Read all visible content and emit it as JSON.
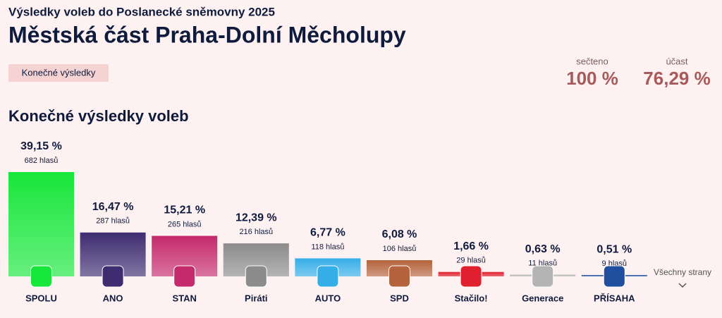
{
  "header": {
    "supertitle": "Výsledky voleb do Poslanecké sněmovny 2025",
    "title": "Městská část Praha-Dolní Měcholupy",
    "badge": "Konečné výsledky"
  },
  "stats": [
    {
      "label": "sečteno",
      "value": "100 %"
    },
    {
      "label": "účast",
      "value": "76,29 %"
    }
  ],
  "chart_data": {
    "type": "bar",
    "title": "Konečné výsledky voleb",
    "categories": [
      "SPOLU",
      "ANO",
      "STAN",
      "Piráti",
      "AUTO",
      "SPD",
      "Stačilo!",
      "Generace",
      "PŘÍSAHA"
    ],
    "values": [
      39.15,
      16.47,
      15.21,
      12.39,
      6.77,
      6.08,
      1.66,
      0.63,
      0.51
    ],
    "value_labels": [
      "39,15 %",
      "16,47 %",
      "15,21 %",
      "12,39 %",
      "6,77 %",
      "6,08 %",
      "1,66 %",
      "0,63 %",
      "0,51 %"
    ],
    "vote_labels": [
      "682 hlasů",
      "287 hlasů",
      "265 hlasů",
      "216 hlasů",
      "118 hlasů",
      "106 hlasů",
      "29 hlasů",
      "11 hlasů",
      "9 hlasů"
    ],
    "colors": [
      "#17e63a",
      "#3d2c70",
      "#c42a6c",
      "#8c8c8c",
      "#35aee8",
      "#b5633c",
      "#e0202e",
      "#b4b4b4",
      "#1f4f9e"
    ],
    "more_link": "Všechny strany"
  }
}
